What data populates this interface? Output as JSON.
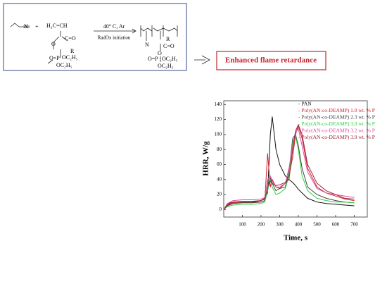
{
  "scheme": {
    "monomer1_atom": "N",
    "plus": "+",
    "vinyl": "H₂C=CH",
    "carbonyl": "C=O",
    "ester_o": "O",
    "phosphonate": "O=P",
    "ethoxy1": "OC₂H₅",
    "ethoxy2": "OC₂H₅",
    "condition": "40° C, Ar",
    "initiation": "RadOx initiation",
    "polymer_atom": "N",
    "polymer_r": "R",
    "polymer_carbonyl": "C=O",
    "polymer_o": "O",
    "polymer_p": "O=P",
    "polymer_ethoxy1": "OC₂H₅",
    "polymer_ethoxy2": "OC₂H₅",
    "monomer2_r": "R"
  },
  "callout": "Enhanced flame retardance",
  "chart_data": {
    "type": "line",
    "x_label": "Time, s",
    "y_label": "HRR, W/g",
    "x": [
      0,
      20,
      50,
      100,
      150,
      200,
      220,
      235,
      250,
      260,
      280,
      300,
      330,
      350,
      370,
      385,
      400,
      420,
      450,
      500,
      550,
      600,
      650,
      700
    ],
    "series": [
      {
        "name": "- PAN",
        "color": "#111111",
        "values": [
          0,
          8,
          10,
          10,
          10,
          12,
          15,
          22,
          100,
          124,
          80,
          60,
          45,
          40,
          36,
          32,
          27,
          22,
          15,
          10,
          8,
          7,
          6,
          5
        ]
      },
      {
        "name": "- Poly(AN-co-DEAMP) 1.0 wt. % P",
        "color": "#d02030",
        "values": [
          0,
          6,
          9,
          10,
          10,
          10,
          12,
          75,
          30,
          40,
          30,
          28,
          35,
          45,
          70,
          100,
          112,
          95,
          55,
          30,
          22,
          18,
          14,
          12
        ]
      },
      {
        "name": "- Poly(AN-co-DEAMP) 2.3 wt. % P",
        "color": "#444444",
        "values": [
          0,
          5,
          8,
          9,
          9,
          10,
          12,
          30,
          42,
          35,
          25,
          28,
          30,
          50,
          95,
          100,
          85,
          55,
          30,
          20,
          15,
          12,
          10,
          9
        ]
      },
      {
        "name": "- Poly(AN-co-DEAMP) 3.0 wt. % P",
        "color": "#33cc44",
        "values": [
          0,
          4,
          6,
          7,
          7,
          8,
          10,
          25,
          40,
          30,
          20,
          22,
          28,
          45,
          90,
          98,
          80,
          45,
          25,
          15,
          12,
          10,
          10,
          9
        ]
      },
      {
        "name": "- Poly(AN-co-DEAMP) 3.2 wt. % P",
        "color": "#e050a0",
        "values": [
          0,
          8,
          12,
          13,
          13,
          14,
          16,
          40,
          45,
          38,
          30,
          30,
          35,
          55,
          85,
          102,
          108,
          85,
          50,
          28,
          22,
          20,
          18,
          16
        ]
      },
      {
        "name": "- Poly(AN-co-DEAMP) 3.9 wt. % P",
        "color": "#a02838",
        "values": [
          0,
          7,
          10,
          11,
          11,
          12,
          14,
          30,
          38,
          35,
          32,
          33,
          36,
          40,
          80,
          105,
          113,
          100,
          60,
          35,
          25,
          20,
          15,
          14
        ]
      }
    ],
    "xlim": [
      0,
      770
    ],
    "xticks": [
      100,
      200,
      300,
      400,
      500,
      600,
      700
    ],
    "ylim": [
      -10,
      145
    ],
    "yticks": [
      0,
      20,
      40,
      60,
      80,
      100,
      120,
      140
    ]
  }
}
